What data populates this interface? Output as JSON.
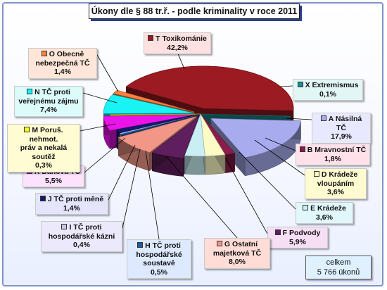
{
  "chart_data": {
    "type": "pie",
    "title": "Úkony dle § 88 tr.ř. - podle kriminality v roce 2011",
    "slices": [
      {
        "id": "T",
        "label": "T Toxikománie",
        "pct": "42,2%",
        "value": 42.2,
        "color": "#9c1b22"
      },
      {
        "id": "X",
        "label": "X Extremismus",
        "pct": "0,1%",
        "value": 0.1,
        "color": "#1b8d93"
      },
      {
        "id": "A",
        "label": "A Násilná TČ",
        "pct": "17,9%",
        "value": 17.9,
        "color": "#a8acef"
      },
      {
        "id": "B",
        "label": "B Mravnostní TČ",
        "pct": "1,8%",
        "value": 1.8,
        "color": "#8b1d4a"
      },
      {
        "id": "D",
        "label": "D Krádeže vloupáním",
        "pct": "3,6%",
        "value": 3.6,
        "color": "#fdfbc6"
      },
      {
        "id": "E",
        "label": "E Krádeže",
        "pct": "3,6%",
        "value": 3.6,
        "color": "#c9eff4"
      },
      {
        "id": "F",
        "label": "F Podvody",
        "pct": "5,9%",
        "value": 5.9,
        "color": "#5f1e5d"
      },
      {
        "id": "G",
        "label": "G Ostatní majetková TČ",
        "pct": "8,0%",
        "value": 8.0,
        "color": "#f29688"
      },
      {
        "id": "H",
        "label": "H TČ proti hospodářské soustavě",
        "pct": "0,5%",
        "value": 0.5,
        "color": "#1e5aa8"
      },
      {
        "id": "I",
        "label": "I TČ proti hospodářské kázni",
        "pct": "0,4%",
        "value": 0.4,
        "color": "#c9c4ee"
      },
      {
        "id": "J",
        "label": "J TČ proti měně",
        "pct": "1,4%",
        "value": 1.4,
        "color": "#121a6e"
      },
      {
        "id": "K",
        "label": "K Daňová TČ",
        "pct": "5,5%",
        "value": 5.5,
        "color": "#ea14ea"
      },
      {
        "id": "M",
        "label": "M Poruš. nehmot. práv a nekalá soutěž",
        "pct": "0,3%",
        "value": 0.3,
        "color": "#f7f71a"
      },
      {
        "id": "N",
        "label": "N TČ proti veřejnému zájmu",
        "pct": "7,4%",
        "value": 7.4,
        "color": "#19f3f3"
      },
      {
        "id": "O",
        "label": "O Obecně nebezpečná TČ",
        "pct": "1,4%",
        "value": 1.4,
        "color": "#ff8040"
      }
    ]
  },
  "labels_text": {
    "T": [
      "T Toxikománie"
    ],
    "X": [
      "X Extremismus"
    ],
    "A": [
      "A Násilná TČ"
    ],
    "B": [
      "B Mravnostní TČ"
    ],
    "D": [
      "D Krádeže",
      "vloupáním"
    ],
    "E": [
      "E Krádeže"
    ],
    "F": [
      "F Podvody"
    ],
    "G": [
      "G Ostatní",
      "majetková TČ"
    ],
    "H": [
      "H TČ proti",
      "hospodářské",
      "soustavě"
    ],
    "I": [
      "I TČ proti",
      "hospodářské kázni"
    ],
    "J": [
      "J TČ proti měně"
    ],
    "K": [
      "K Daňová TČ"
    ],
    "M": [
      "M Poruš. nehmot.",
      "práv a nekalá",
      "soutěž"
    ],
    "N": [
      "N TČ proti",
      "veřejnému zájmu"
    ],
    "O": [
      "O Obecně",
      "nebezpečná TČ"
    ]
  },
  "total": {
    "line1": "celkem",
    "line2": "5 766 úkonů"
  }
}
